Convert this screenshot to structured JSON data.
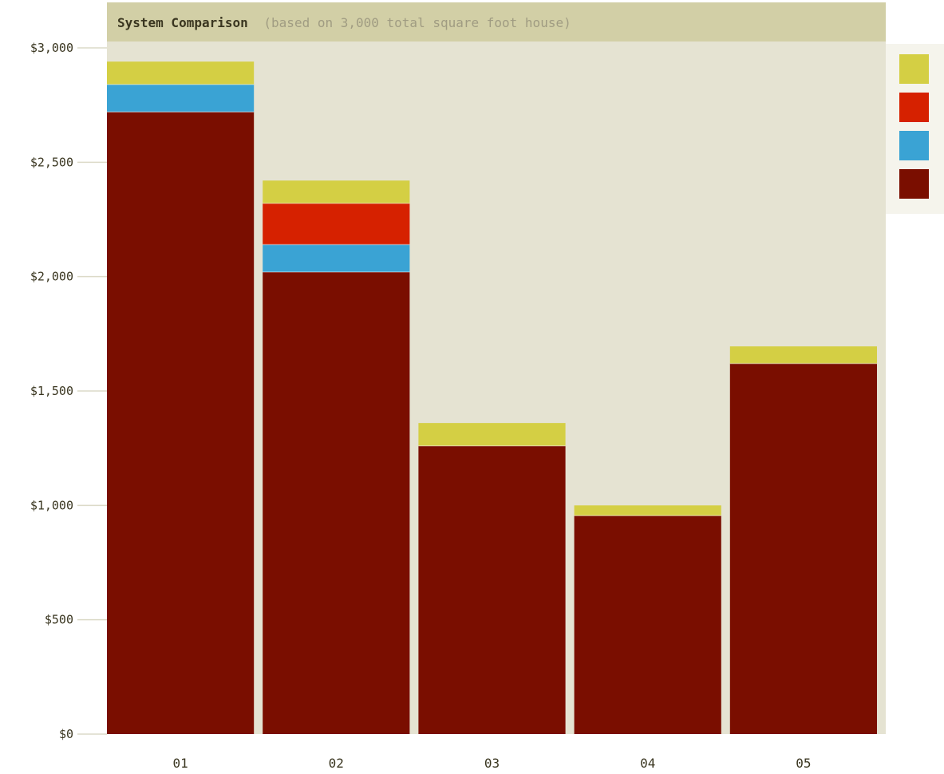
{
  "colors": {
    "plot_background": "#e5e3d2",
    "title_bar": "#d2cfa6",
    "legend_background": "#f5f4ec",
    "gridline": "#dcdac8"
  },
  "chart_data": {
    "type": "bar",
    "stacked": true,
    "title": "System Comparison",
    "subtitle": "(based on 3,000 total square foot house)",
    "xlabel": "",
    "ylabel": "",
    "categories": [
      "01",
      "02",
      "03",
      "04",
      "05"
    ],
    "ylim": [
      0,
      3000
    ],
    "yticks": [
      0,
      500,
      1000,
      1500,
      2000,
      2500,
      3000
    ],
    "ytick_labels": [
      "$0",
      "$500",
      "$1,000",
      "$1,500",
      "$2,000",
      "$2,500",
      "$3,000"
    ],
    "legend_position": "right",
    "series": [
      {
        "color": "#7a0e00",
        "values": [
          2720,
          2020,
          1260,
          955,
          1620
        ]
      },
      {
        "color": "#3aa3d4",
        "values": [
          120,
          120,
          0,
          0,
          0
        ]
      },
      {
        "color": "#d62100",
        "values": [
          0,
          180,
          0,
          0,
          0
        ]
      },
      {
        "color": "#d4cf44",
        "values": [
          100,
          100,
          100,
          45,
          75
        ]
      }
    ],
    "legend_order": [
      3,
      2,
      1,
      0
    ]
  }
}
